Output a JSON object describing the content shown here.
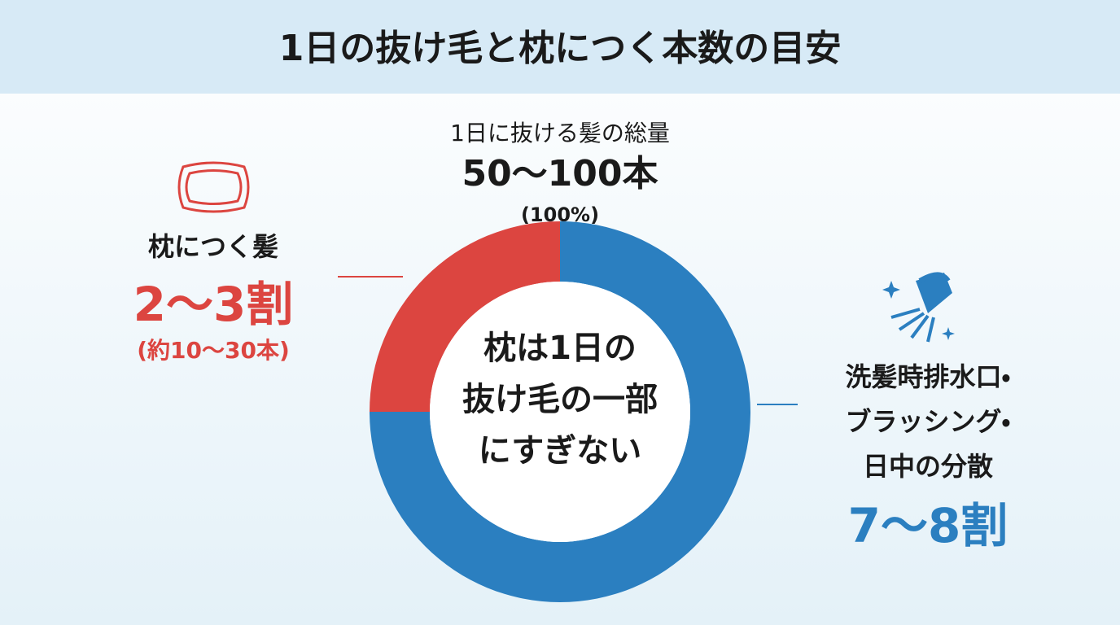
{
  "chart_data": {
    "type": "donut",
    "title": "1日の抜け毛と枕につく本数の目安",
    "total": {
      "caption": "1日に抜ける髪の総量",
      "amount": "50〜100本",
      "share": "(100%)"
    },
    "center_text": [
      "枕は1日の",
      "抜け毛の一部",
      "にすぎない"
    ],
    "values": [
      25,
      75
    ],
    "colors": [
      "#dc4540",
      "#2b7fc0"
    ],
    "labels": [
      {
        "name": [
          "枕につく髪"
        ],
        "share": "2〜3割",
        "note": "(約10〜30本)"
      },
      {
        "name": [
          "洗髪時排水口・",
          "ブラッシング・",
          "日中の分散"
        ],
        "share": "7〜8割"
      }
    ]
  }
}
